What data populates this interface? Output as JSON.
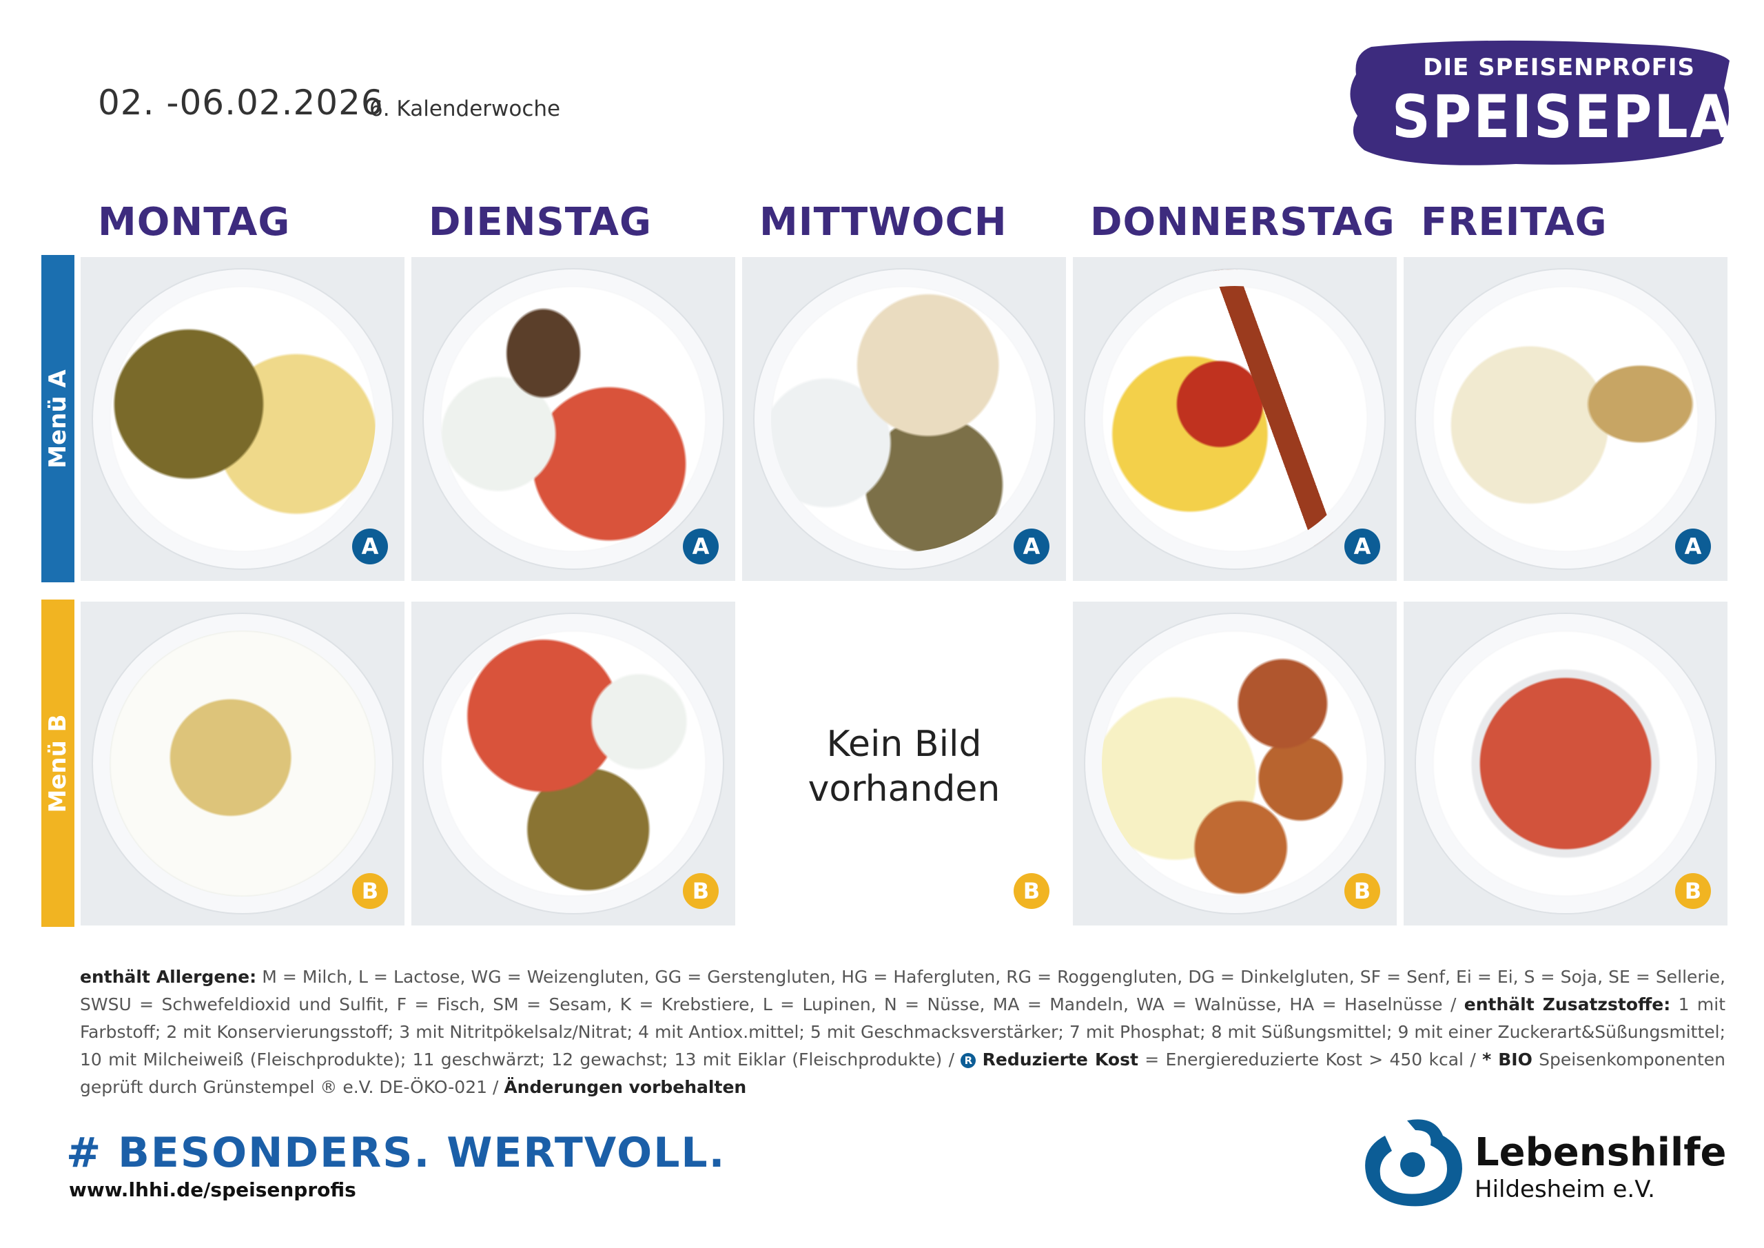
{
  "header": {
    "date_range": "02. -06.02.2026",
    "calendar_week": "6. Kalenderwoche"
  },
  "brand": {
    "subtitle": "DIE SPEISENPROFIS",
    "title": "SPEISEPLAN",
    "color": "#3d2b7e"
  },
  "days": [
    "MONTAG",
    "DIENSTAG",
    "MITTWOCH",
    "DONNERSTAG",
    "FREITAG"
  ],
  "menus": [
    {
      "label": "Menü A",
      "badge": "A",
      "color": "#1b6fb0",
      "dishes": [
        "photo",
        "photo",
        "photo",
        "photo",
        "photo"
      ]
    },
    {
      "label": "Menü B",
      "badge": "B",
      "color": "#f1b422",
      "dishes": [
        "photo",
        "photo",
        "Kein Bild vorhanden",
        "photo",
        "photo"
      ]
    }
  ],
  "no_image": {
    "line1": "Kein Bild",
    "line2": "vorhanden"
  },
  "footer": {
    "allergens_label": "enthält Allergene:",
    "allergens_text": "M = Milch, L = Lactose, WG = Weizengluten, GG = Gerstengluten, HG = Hafergluten, RG = Roggengluten, DG = Dinkelgluten, SF = Senf, Ei = Ei, S = Soja, SE = Sellerie, SWSU = Schwefeldioxid und Sulfit, F = Fisch, SM = Sesam, K = Krebstiere, L = Lupinen, N = Nüsse, MA = Mandeln, WA = Walnüsse, HA =  Haselnüsse /",
    "additives_label": "enthält Zusatzstoffe:",
    "additives_text": "1 mit Farbstoff; 2 mit Konservierungsstoff; 3 mit Nitritpökelsalz/Nitrat; 4 mit Antiox.mittel; 5 mit Geschmacksverstärker; 7 mit Phosphat; 8 mit Süßungsmittel; 9 mit einer Zuckerart&Süßungsmittel; 10 mit Milcheiweiß (Fleischprodukte); 11 geschwärzt; 12 gewachst; 13 mit Eiklar (Fleischprodukte) /",
    "reduced_mark": "R",
    "reduced_label": "Reduzierte Kost",
    "reduced_text": "= Energiereduzierte Kost > 450 kcal /",
    "bio_label": "* BIO",
    "bio_text": "Speisenkomponenten geprüft durch Grünstempel ® e.V. DE-ÖKO-021 /",
    "changes": "Änderungen vorbehalten",
    "hashtag": "# BESONDERS. WERTVOLL.",
    "url": "www.lhhi.de/speisenprofis"
  },
  "logo": {
    "name": "Lebenshilfe",
    "sub": "Hildesheim e.V.",
    "color": "#0c5d96"
  }
}
